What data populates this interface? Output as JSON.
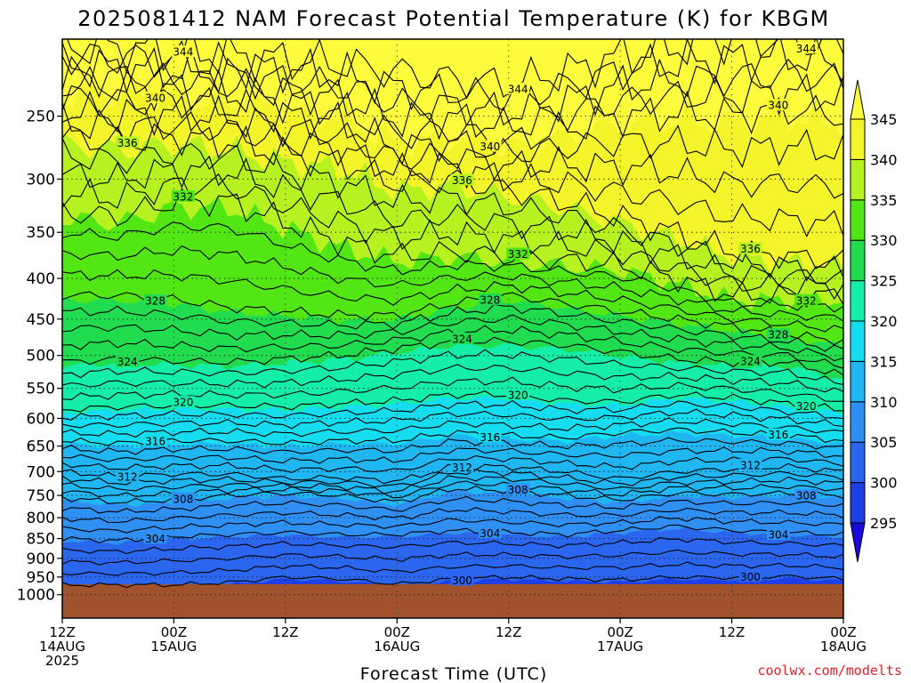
{
  "chart_data": {
    "type": "heatmap",
    "title": "2025081412 NAM Forecast Potential Temperature (K) for KBGM",
    "xlabel": "Forecast Time (UTC)",
    "ylabel": "",
    "y_scale": "log-pressure",
    "y_axis_reversed": true,
    "ylim": [
      1000,
      200
    ],
    "y_ticks": [
      250,
      300,
      350,
      400,
      450,
      500,
      550,
      600,
      650,
      700,
      750,
      800,
      850,
      900,
      950,
      1000
    ],
    "x_ticks": [
      {
        "hour": 0,
        "line1": "12Z",
        "line2": "14AUG",
        "line3": "2025"
      },
      {
        "hour": 12,
        "line1": "00Z",
        "line2": "15AUG",
        "line3": ""
      },
      {
        "hour": 24,
        "line1": "12Z",
        "line2": "",
        "line3": ""
      },
      {
        "hour": 36,
        "line1": "00Z",
        "line2": "16AUG",
        "line3": ""
      },
      {
        "hour": 48,
        "line1": "12Z",
        "line2": "",
        "line3": ""
      },
      {
        "hour": 60,
        "line1": "00Z",
        "line2": "17AUG",
        "line3": ""
      },
      {
        "hour": 72,
        "line1": "12Z",
        "line2": "",
        "line3": ""
      },
      {
        "hour": 84,
        "line1": "00Z",
        "line2": "18AUG",
        "line3": ""
      }
    ],
    "xlim": [
      0,
      84
    ],
    "grid": true,
    "colorbar": {
      "levels": [
        295,
        300,
        305,
        310,
        315,
        320,
        325,
        330,
        335,
        340,
        345
      ],
      "colors": [
        "#1a0ad8",
        "#1e3ee8",
        "#2b66ee",
        "#2f8ff2",
        "#1fb6f2",
        "#16dcef",
        "#14eea8",
        "#22dc50",
        "#52e614",
        "#b6f220",
        "#f4f42a",
        "#fcfc3c"
      ],
      "extend": "both"
    },
    "ground_color": "#a0522d",
    "ground_below_pressure": 970,
    "contour_interval": 4,
    "contour_levels_labeled": [
      300,
      304,
      308,
      312,
      316,
      320,
      324,
      328,
      332,
      336,
      340,
      344
    ],
    "isentrope_pressure_profiles": {
      "hours": [
        0,
        6,
        12,
        18,
        24,
        30,
        36,
        42,
        48,
        54,
        60,
        66,
        72,
        78,
        84
      ],
      "levels": [
        {
          "theta": 300,
          "p": [
            972,
            972,
            972,
            965,
            950,
            955,
            970,
            955,
            950,
            955,
            958,
            950,
            952,
            948,
            955
          ]
        },
        {
          "theta": 304,
          "p": [
            850,
            855,
            845,
            840,
            835,
            840,
            840,
            830,
            835,
            840,
            830,
            820,
            830,
            835,
            840
          ]
        },
        {
          "theta": 308,
          "p": [
            755,
            765,
            760,
            750,
            745,
            750,
            765,
            735,
            740,
            750,
            760,
            745,
            748,
            745,
            750
          ]
        },
        {
          "theta": 312,
          "p": [
            700,
            710,
            705,
            705,
            715,
            712,
            720,
            690,
            690,
            700,
            715,
            700,
            695,
            690,
            700
          ]
        },
        {
          "theta": 316,
          "p": [
            640,
            645,
            640,
            640,
            645,
            640,
            640,
            625,
            630,
            635,
            625,
            620,
            625,
            630,
            640
          ]
        },
        {
          "theta": 320,
          "p": [
            585,
            580,
            578,
            578,
            580,
            575,
            570,
            560,
            560,
            570,
            572,
            560,
            565,
            575,
            585
          ]
        },
        {
          "theta": 324,
          "p": [
            510,
            505,
            508,
            510,
            505,
            500,
            490,
            480,
            480,
            485,
            495,
            505,
            510,
            510,
            530
          ]
        },
        {
          "theta": 328,
          "p": [
            420,
            420,
            425,
            435,
            440,
            445,
            445,
            430,
            420,
            430,
            440,
            450,
            460,
            470,
            480
          ]
        },
        {
          "theta": 332,
          "p": [
            330,
            335,
            320,
            320,
            340,
            360,
            375,
            370,
            375,
            380,
            385,
            400,
            420,
            420,
            420
          ]
        },
        {
          "theta": 336,
          "p": [
            265,
            270,
            265,
            270,
            280,
            285,
            305,
            300,
            310,
            320,
            335,
            350,
            370,
            375,
            380
          ]
        },
        {
          "theta": 340,
          "p": [
            228,
            230,
            232,
            235,
            240,
            245,
            265,
            260,
            270,
            260,
            250,
            248,
            250,
            245,
            250
          ]
        },
        {
          "theta": 344,
          "p": [
            205,
            205,
            207,
            210,
            212,
            215,
            220,
            225,
            228,
            220,
            210,
            205,
            200,
            200,
            205
          ]
        }
      ]
    }
  },
  "credit": "coolwx.com/modelts"
}
